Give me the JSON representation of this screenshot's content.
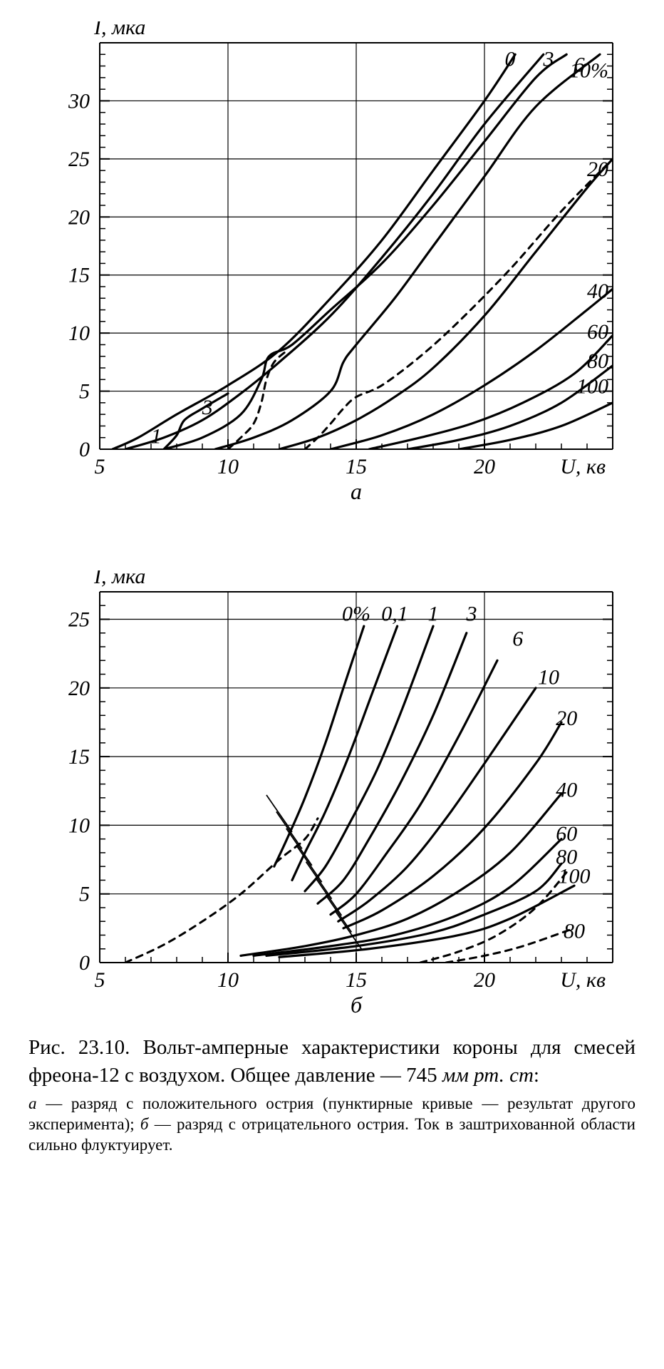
{
  "chart_a": {
    "type": "line",
    "y_label": "I, мка",
    "x_label": "U, кв",
    "sub_label": "а",
    "xlim": [
      5,
      25
    ],
    "ylim": [
      0,
      35
    ],
    "x_ticks": [
      5,
      10,
      15,
      20
    ],
    "y_ticks": [
      0,
      5,
      10,
      15,
      20,
      25,
      30
    ],
    "x_minor_step": 1,
    "y_minor_step": 1,
    "background_color": "#ffffff",
    "grid_color": "#000000",
    "curve_color": "#000000",
    "curve_width": 3.2,
    "axis_fontsize": 30,
    "curve_labels": [
      {
        "text": "0",
        "x": 21.0,
        "y": 33.5
      },
      {
        "text": "3",
        "x": 22.5,
        "y": 33.5
      },
      {
        "text": "6",
        "x": 23.7,
        "y": 33.0
      },
      {
        "text": "10%",
        "x": 25.0,
        "y": 32.5
      },
      {
        "text": "20",
        "x": 25.0,
        "y": 24.0
      },
      {
        "text": "40",
        "x": 25.0,
        "y": 13.5
      },
      {
        "text": "60",
        "x": 25.0,
        "y": 10.0
      },
      {
        "text": "80",
        "x": 25.0,
        "y": 7.5
      },
      {
        "text": "100",
        "x": 25.0,
        "y": 5.3
      },
      {
        "text": "1",
        "x": 7.2,
        "y": 1.0
      },
      {
        "text": "3",
        "x": 9.2,
        "y": 3.5
      }
    ],
    "series": [
      {
        "dash": false,
        "pts": [
          [
            5.5,
            0
          ],
          [
            6.5,
            1
          ],
          [
            8,
            3
          ],
          [
            10,
            5.5
          ],
          [
            12,
            8.5
          ],
          [
            14,
            13
          ],
          [
            16,
            18
          ],
          [
            18,
            24
          ],
          [
            20,
            30
          ],
          [
            21.2,
            34
          ]
        ]
      },
      {
        "dash": false,
        "pts": [
          [
            6,
            0
          ],
          [
            7.5,
            1
          ],
          [
            9,
            2.5
          ],
          [
            10.5,
            4.8
          ],
          [
            12,
            7.5
          ],
          [
            14,
            11.5
          ],
          [
            16,
            16.5
          ],
          [
            18,
            22
          ],
          [
            20,
            28
          ],
          [
            22.3,
            34
          ]
        ]
      },
      {
        "dash": false,
        "pts": [
          [
            7.5,
            0
          ],
          [
            9,
            1
          ],
          [
            10.5,
            3
          ],
          [
            11.3,
            6
          ],
          [
            11.6,
            8
          ],
          [
            12.5,
            9
          ],
          [
            14,
            12
          ],
          [
            16,
            16
          ],
          [
            18,
            21
          ],
          [
            20,
            26.5
          ],
          [
            22,
            32
          ],
          [
            23.2,
            34
          ]
        ]
      },
      {
        "dash": false,
        "pts": [
          [
            9.5,
            0
          ],
          [
            11,
            1
          ],
          [
            12.5,
            2.5
          ],
          [
            14,
            5
          ],
          [
            14.5,
            7.5
          ],
          [
            15,
            9
          ],
          [
            16.5,
            13
          ],
          [
            18,
            17.5
          ],
          [
            20,
            23.5
          ],
          [
            22,
            29.5
          ],
          [
            24.5,
            34
          ]
        ]
      },
      {
        "dash": false,
        "pts": [
          [
            12,
            0
          ],
          [
            13.5,
            1
          ],
          [
            15,
            2.5
          ],
          [
            16.5,
            4.5
          ],
          [
            18,
            7
          ],
          [
            20,
            11.5
          ],
          [
            22,
            17
          ],
          [
            24,
            22.5
          ],
          [
            25,
            25
          ]
        ]
      },
      {
        "dash": false,
        "pts": [
          [
            14,
            0
          ],
          [
            16,
            1.2
          ],
          [
            18,
            3
          ],
          [
            20,
            5.5
          ],
          [
            22,
            8.5
          ],
          [
            24,
            12
          ],
          [
            25,
            13.8
          ]
        ]
      },
      {
        "dash": false,
        "pts": [
          [
            15.5,
            0
          ],
          [
            17.5,
            1
          ],
          [
            19.5,
            2.2
          ],
          [
            21.5,
            4
          ],
          [
            23.5,
            6.5
          ],
          [
            25,
            9.8
          ]
        ]
      },
      {
        "dash": false,
        "pts": [
          [
            17,
            0
          ],
          [
            19,
            0.8
          ],
          [
            21,
            2
          ],
          [
            23,
            4
          ],
          [
            25,
            7.2
          ]
        ]
      },
      {
        "dash": false,
        "pts": [
          [
            19,
            0
          ],
          [
            21,
            0.8
          ],
          [
            23,
            2
          ],
          [
            25,
            4.0
          ]
        ]
      },
      {
        "dash": false,
        "pts": [
          [
            7.5,
            0
          ],
          [
            8,
            1.2
          ],
          [
            8.3,
            2.5
          ],
          [
            9,
            3.5
          ],
          [
            10,
            4.8
          ]
        ]
      },
      {
        "dash": true,
        "pts": [
          [
            10,
            0
          ],
          [
            10.5,
            1
          ],
          [
            11,
            2.2
          ],
          [
            11.3,
            4
          ],
          [
            11.5,
            6
          ],
          [
            11.8,
            7.5
          ],
          [
            12.3,
            8.5
          ]
        ]
      },
      {
        "dash": true,
        "pts": [
          [
            13,
            0
          ],
          [
            13.5,
            1
          ],
          [
            14,
            2.2
          ],
          [
            14.5,
            3.5
          ],
          [
            15,
            4.5
          ],
          [
            16,
            5.5
          ],
          [
            17.5,
            8
          ],
          [
            19,
            11
          ],
          [
            21,
            15.5
          ],
          [
            23,
            20.5
          ],
          [
            25,
            25
          ]
        ]
      }
    ]
  },
  "chart_b": {
    "type": "line",
    "y_label": "I, мка",
    "x_label": "U, кв",
    "sub_label": "б",
    "xlim": [
      5,
      25
    ],
    "ylim": [
      0,
      27
    ],
    "x_ticks": [
      5,
      10,
      15,
      20
    ],
    "y_ticks": [
      0,
      5,
      10,
      15,
      20,
      25
    ],
    "x_minor_step": 1,
    "y_minor_step": 1,
    "background_color": "#ffffff",
    "grid_color": "#000000",
    "curve_color": "#000000",
    "curve_width": 3.2,
    "axis_fontsize": 30,
    "curve_labels": [
      {
        "text": "0%",
        "x": 15.0,
        "y": 25.3
      },
      {
        "text": "0,1",
        "x": 16.5,
        "y": 25.3
      },
      {
        "text": "1",
        "x": 18.0,
        "y": 25.3
      },
      {
        "text": "3",
        "x": 19.5,
        "y": 25.3
      },
      {
        "text": "6",
        "x": 21.3,
        "y": 23.5
      },
      {
        "text": "10",
        "x": 22.5,
        "y": 20.7
      },
      {
        "text": "20",
        "x": 23.2,
        "y": 17.7
      },
      {
        "text": "40",
        "x": 23.2,
        "y": 12.5
      },
      {
        "text": "60",
        "x": 23.2,
        "y": 9.3
      },
      {
        "text": "80",
        "x": 23.2,
        "y": 7.6
      },
      {
        "text": "100",
        "x": 23.5,
        "y": 6.2
      },
      {
        "text": "80",
        "x": 23.5,
        "y": 2.2
      }
    ],
    "series": [
      {
        "dash": false,
        "pts": [
          [
            11.8,
            7
          ],
          [
            12.3,
            9
          ],
          [
            13,
            12
          ],
          [
            13.8,
            16
          ],
          [
            14.5,
            20
          ],
          [
            15.3,
            24.5
          ]
        ]
      },
      {
        "dash": false,
        "pts": [
          [
            12.5,
            6
          ],
          [
            13,
            8
          ],
          [
            13.8,
            11
          ],
          [
            14.7,
            15
          ],
          [
            15.6,
            19.5
          ],
          [
            16.6,
            24.5
          ]
        ]
      },
      {
        "dash": false,
        "pts": [
          [
            13,
            5.2
          ],
          [
            13.8,
            7
          ],
          [
            14.7,
            10
          ],
          [
            15.8,
            14
          ],
          [
            16.8,
            18.5
          ],
          [
            18,
            24.5
          ]
        ]
      },
      {
        "dash": false,
        "pts": [
          [
            13.5,
            4.3
          ],
          [
            14.5,
            6
          ],
          [
            15.5,
            9
          ],
          [
            16.7,
            13
          ],
          [
            18,
            18
          ],
          [
            19.3,
            24
          ]
        ]
      },
      {
        "dash": false,
        "pts": [
          [
            14,
            3.5
          ],
          [
            15,
            5
          ],
          [
            16.2,
            8
          ],
          [
            17.5,
            11.5
          ],
          [
            19,
            16.5
          ],
          [
            20.5,
            22
          ]
        ]
      },
      {
        "dash": false,
        "pts": [
          [
            14.3,
            3
          ],
          [
            15.5,
            4.5
          ],
          [
            17,
            7
          ],
          [
            18.5,
            10.5
          ],
          [
            20,
            14.5
          ],
          [
            22,
            20
          ]
        ]
      },
      {
        "dash": false,
        "pts": [
          [
            14.5,
            2.5
          ],
          [
            16,
            3.8
          ],
          [
            18,
            6.3
          ],
          [
            20,
            9.8
          ],
          [
            22,
            14.5
          ],
          [
            23,
            17.5
          ]
        ]
      },
      {
        "dash": false,
        "pts": [
          [
            10.5,
            0.5
          ],
          [
            13,
            1.2
          ],
          [
            15,
            2.0
          ],
          [
            17,
            3.2
          ],
          [
            19,
            5.2
          ],
          [
            21,
            8
          ],
          [
            23,
            12.3
          ]
        ]
      },
      {
        "dash": false,
        "pts": [
          [
            11,
            0.5
          ],
          [
            14,
            1.2
          ],
          [
            16.5,
            2
          ],
          [
            19,
            3.5
          ],
          [
            21,
            5.5
          ],
          [
            23,
            9.0
          ]
        ]
      },
      {
        "dash": false,
        "pts": [
          [
            11.5,
            0.5
          ],
          [
            15,
            1.2
          ],
          [
            18,
            2.2
          ],
          [
            20,
            3.5
          ],
          [
            22,
            5.2
          ],
          [
            23,
            7.2
          ]
        ]
      },
      {
        "dash": false,
        "pts": [
          [
            12,
            0.4
          ],
          [
            15.5,
            1.0
          ],
          [
            19,
            2
          ],
          [
            21,
            3.2
          ],
          [
            23.5,
            5.6
          ]
        ]
      },
      {
        "dash": true,
        "pts": [
          [
            6,
            0
          ],
          [
            7.5,
            1.3
          ],
          [
            9,
            3
          ],
          [
            10.5,
            5
          ],
          [
            12,
            7.5
          ],
          [
            13,
            9
          ],
          [
            13.5,
            10.5
          ]
        ]
      },
      {
        "dash": true,
        "pts": [
          [
            17.5,
            0
          ],
          [
            19,
            0.8
          ],
          [
            20.5,
            2
          ],
          [
            22,
            4
          ],
          [
            23.3,
            6.8
          ]
        ]
      },
      {
        "dash": true,
        "pts": [
          [
            18.5,
            0
          ],
          [
            20,
            0.5
          ],
          [
            21.5,
            1.2
          ],
          [
            23.5,
            2.5
          ]
        ]
      }
    ],
    "hatch_region": [
      [
        11.8,
        11
      ],
      [
        14.5,
        2.5
      ]
    ]
  },
  "caption_main": "Рис. 23.10.  Вольт-амперные  характеристики  короны для смесей фреона-12 с воздухом.  Общее давление — 745",
  "caption_unit": "мм рт. ст",
  "caption_sub": "а — разряд с положительного острия (пунктирные кривые — результат другого эксперимента);  б — разряд с отрицательного острия. Ток в заштрихованной области сильно флуктуирует."
}
